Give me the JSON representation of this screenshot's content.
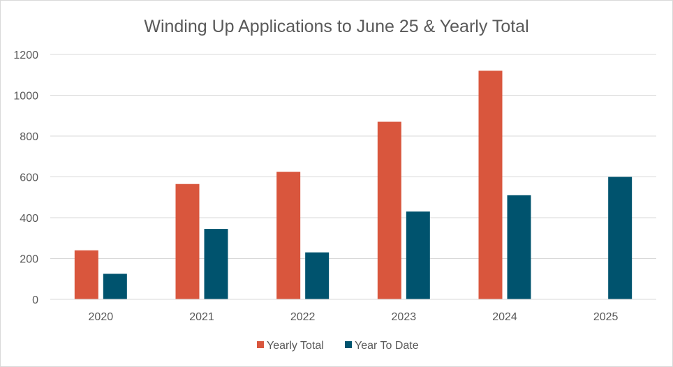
{
  "chart_data": {
    "type": "bar",
    "title": "Winding Up Applications to June 25 & Yearly Total",
    "xlabel": "",
    "ylabel": "",
    "categories": [
      "2020",
      "2021",
      "2022",
      "2023",
      "2024",
      "2025"
    ],
    "series": [
      {
        "name": "Yearly Total",
        "values": [
          240,
          565,
          625,
          870,
          1120,
          null
        ],
        "color": "#D9563D"
      },
      {
        "name": "Year To Date",
        "values": [
          125,
          345,
          230,
          430,
          510,
          600
        ],
        "color": "#00536E"
      }
    ],
    "ylim": [
      0,
      1200
    ],
    "yticks": [
      "0",
      "200",
      "400",
      "600",
      "800",
      "1000",
      "1200"
    ],
    "grid": true,
    "legend_position": "bottom"
  }
}
